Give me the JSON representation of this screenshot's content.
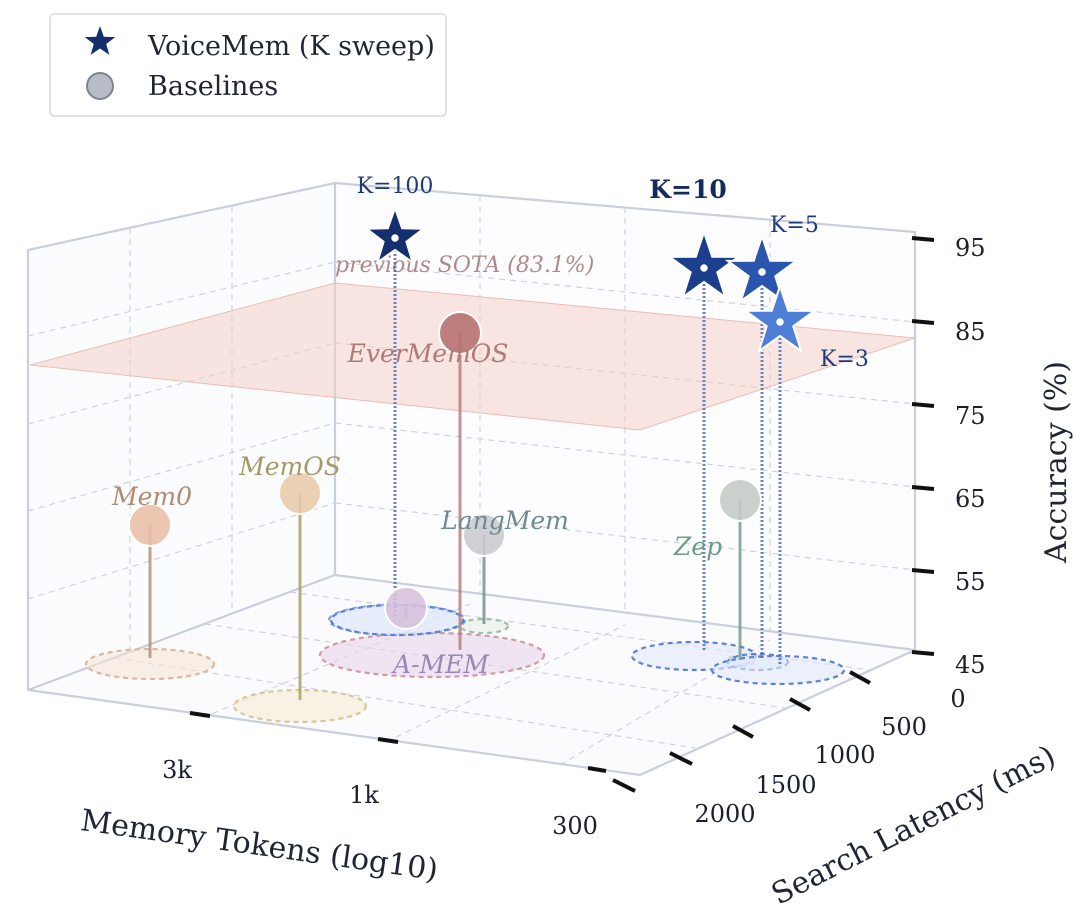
{
  "chart_data": {
    "type": "scatter3d",
    "title": "",
    "legend": {
      "placement": "top-left",
      "entries": [
        {
          "label": "VoiceMem (K sweep)",
          "marker": "star",
          "color": "#142f6e"
        },
        {
          "label": "Baselines",
          "marker": "circle",
          "color": "#b7bcc6"
        }
      ]
    },
    "axes": {
      "x": {
        "label": "Memory Tokens (log10)",
        "ticks": [
          "3k",
          "1k",
          "300"
        ],
        "scale": "log"
      },
      "y": {
        "label": "Search Latency (ms)",
        "ticks": [
          "0",
          "500",
          "1000",
          "1500",
          "2000"
        ]
      },
      "z": {
        "label": "Accuracy (%)",
        "ticks": [
          "45",
          "55",
          "65",
          "75",
          "85",
          "95"
        ],
        "range": [
          45,
          95
        ]
      }
    },
    "reference_plane": {
      "label": "previous SOTA (83.1%)",
      "value": 83.1,
      "color": "#f4cfc6"
    },
    "voicemem": [
      {
        "label": "K=100",
        "accuracy": 93.5,
        "color": "#142f6e"
      },
      {
        "label": "K=10",
        "accuracy": 91.0,
        "color": "#1b3f8c",
        "bold": true
      },
      {
        "label": "K=5",
        "accuracy": 90.5,
        "color": "#2a55ad"
      },
      {
        "label": "K=3",
        "accuracy": 84.5,
        "color": "#4d7fd6"
      }
    ],
    "baselines": [
      {
        "name": "EverMemOS",
        "accuracy": 82.5,
        "color": "#b5706e",
        "label_color": "#b07a78"
      },
      {
        "name": "MemOS",
        "accuracy": 63.0,
        "color": "#e8c9a9",
        "label_color": "#a59a67"
      },
      {
        "name": "Mem0",
        "accuracy": 60.5,
        "color": "#e9bea6",
        "label_color": "#b18a70"
      },
      {
        "name": "LangMem",
        "accuracy": 58.5,
        "color": "#c9c9cf",
        "label_color": "#6d8b90"
      },
      {
        "name": "Zep",
        "accuracy": 62.0,
        "color": "#c3cbc6",
        "label_color": "#6f9a87"
      },
      {
        "name": "A-MEM",
        "accuracy": 48.0,
        "color": "#d6c0dc",
        "label_color": "#9a86b8"
      }
    ],
    "grid": true
  }
}
